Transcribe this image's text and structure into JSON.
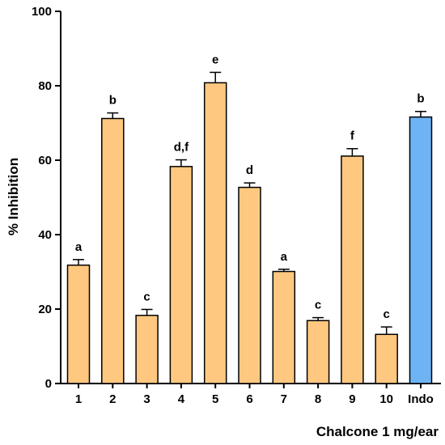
{
  "chart_data": {
    "type": "bar",
    "title": "",
    "xlabel": "Chalcone 1 mg/ear",
    "ylabel": "% Inhibition",
    "ylim": [
      0,
      100
    ],
    "yticks": [
      0,
      20,
      40,
      60,
      80,
      100
    ],
    "grid": false,
    "categories": [
      "1",
      "2",
      "3",
      "4",
      "5",
      "6",
      "7",
      "8",
      "9",
      "10",
      "Indo"
    ],
    "values": [
      31.8,
      71.2,
      18.3,
      58.3,
      80.8,
      52.7,
      30.1,
      16.9,
      61.1,
      13.2,
      71.6
    ],
    "errors": [
      1.5,
      1.5,
      1.6,
      1.8,
      2.8,
      1.2,
      0.6,
      0.8,
      2.0,
      2.0,
      1.5
    ],
    "letters": [
      "a",
      "b",
      "c",
      "d,f",
      "e",
      "d",
      "a",
      "c",
      "f",
      "c",
      "b"
    ],
    "colors": [
      "#FFC880",
      "#FFC880",
      "#FFC880",
      "#FFC880",
      "#FFC880",
      "#FFC880",
      "#FFC880",
      "#FFC880",
      "#FFC880",
      "#FFC880",
      "#6EB4F5"
    ],
    "stroke_color": "#000000"
  }
}
